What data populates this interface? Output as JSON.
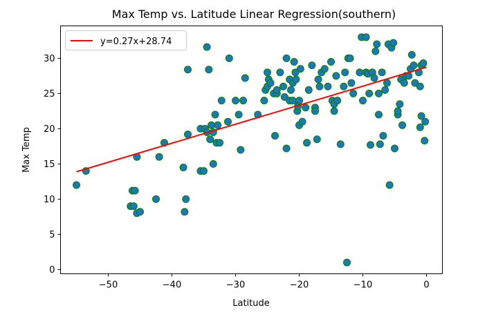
{
  "chart_data": {
    "type": "scatter",
    "title": "Max Temp vs. Latitude Linear Regression(southern)",
    "xlabel": "Latitude",
    "ylabel": "Max Temp",
    "xlim": [
      -57.5,
      2.5
    ],
    "ylim": [
      -0.6,
      34.6
    ],
    "xticks": [
      -50,
      -40,
      -30,
      -20,
      -10,
      0
    ],
    "yticks": [
      0,
      5,
      10,
      15,
      20,
      25,
      30
    ],
    "grid": false,
    "legend_position": "top-left",
    "regression": {
      "label": "y=0.27x+28.74",
      "slope": 0.27,
      "intercept": 28.74,
      "x_range": [
        -55,
        0
      ],
      "color": "#ff0000"
    },
    "marker_fill": "#1f77b4",
    "marker_edge": "#008000",
    "points": [
      [
        -55,
        12
      ],
      [
        -53.5,
        14
      ],
      [
        -46.5,
        9
      ],
      [
        -46.2,
        11.2
      ],
      [
        -46,
        9
      ],
      [
        -45.8,
        11.2
      ],
      [
        -45.5,
        8
      ],
      [
        -45.5,
        16
      ],
      [
        -45,
        8.2
      ],
      [
        -42.5,
        10
      ],
      [
        -42,
        16
      ],
      [
        -41.2,
        18
      ],
      [
        -38.2,
        14.5
      ],
      [
        -38,
        8.2
      ],
      [
        -37.8,
        10
      ],
      [
        -37.5,
        19.2
      ],
      [
        -37.5,
        28.4
      ],
      [
        -35.5,
        14
      ],
      [
        -35.5,
        20
      ],
      [
        -35,
        14
      ],
      [
        -34.8,
        20
      ],
      [
        -34.5,
        31.6
      ],
      [
        -34.5,
        19.5
      ],
      [
        -34.2,
        28.4
      ],
      [
        -34,
        18.5
      ],
      [
        -33.8,
        20.5
      ],
      [
        -33.5,
        15
      ],
      [
        -33.5,
        19.5
      ],
      [
        -33.2,
        22
      ],
      [
        -33,
        18
      ],
      [
        -32.8,
        20.5
      ],
      [
        -32.5,
        18
      ],
      [
        -32.2,
        24
      ],
      [
        -31.2,
        21
      ],
      [
        -31,
        30
      ],
      [
        -30,
        24
      ],
      [
        -29.5,
        22
      ],
      [
        -29.2,
        17
      ],
      [
        -28.8,
        24
      ],
      [
        -28.5,
        27.2
      ],
      [
        -26.5,
        22
      ],
      [
        -25.5,
        24
      ],
      [
        -25.3,
        25.5
      ],
      [
        -25,
        26
      ],
      [
        -25,
        28
      ],
      [
        -24.8,
        27
      ],
      [
        -24.5,
        26.5
      ],
      [
        -24,
        25
      ],
      [
        -23.8,
        19
      ],
      [
        -23.5,
        25
      ],
      [
        -23.5,
        25.5
      ],
      [
        -23,
        28
      ],
      [
        -22.5,
        26
      ],
      [
        -22.3,
        24.5
      ],
      [
        -22,
        17.2
      ],
      [
        -22,
        30
      ],
      [
        -21.5,
        27
      ],
      [
        -21.5,
        24
      ],
      [
        -21.3,
        25.5
      ],
      [
        -21,
        26.5
      ],
      [
        -21,
        24
      ],
      [
        -20.8,
        29.5
      ],
      [
        -20.6,
        28
      ],
      [
        -20.5,
        27
      ],
      [
        -20.3,
        22.5
      ],
      [
        -20.2,
        23.2
      ],
      [
        -20,
        20.5
      ],
      [
        -20,
        24
      ],
      [
        -19.8,
        28.5
      ],
      [
        -19.5,
        21
      ],
      [
        -19,
        23
      ],
      [
        -18.8,
        18
      ],
      [
        -18.5,
        25.5
      ],
      [
        -18,
        29
      ],
      [
        -17.5,
        23
      ],
      [
        -17.5,
        22.5
      ],
      [
        -17.2,
        18.5
      ],
      [
        -17,
        27
      ],
      [
        -16.8,
        26
      ],
      [
        -16.5,
        28
      ],
      [
        -16,
        28.5
      ],
      [
        -15.5,
        26
      ],
      [
        -15,
        29.5
      ],
      [
        -14.8,
        24
      ],
      [
        -14.5,
        23.5
      ],
      [
        -14.5,
        22.5
      ],
      [
        -14.2,
        27.5
      ],
      [
        -14,
        24
      ],
      [
        -13.5,
        17.8
      ],
      [
        -13,
        26
      ],
      [
        -12.8,
        28
      ],
      [
        -12.5,
        1
      ],
      [
        -12.3,
        30
      ],
      [
        -12,
        30
      ],
      [
        -11.8,
        26.5
      ],
      [
        -11.5,
        25
      ],
      [
        -10.5,
        28
      ],
      [
        -10.2,
        33
      ],
      [
        -10,
        24
      ],
      [
        -9.5,
        33
      ],
      [
        -9.5,
        28
      ],
      [
        -9.2,
        27.8
      ],
      [
        -9,
        25
      ],
      [
        -8.8,
        17.7
      ],
      [
        -8.5,
        28
      ],
      [
        -8.2,
        27.2
      ],
      [
        -8,
        31
      ],
      [
        -7.8,
        32
      ],
      [
        -7.5,
        25
      ],
      [
        -7.5,
        22
      ],
      [
        -7.3,
        17.8
      ],
      [
        -7,
        28
      ],
      [
        -6.8,
        19
      ],
      [
        -6.5,
        25.5
      ],
      [
        -6.2,
        26.5
      ],
      [
        -6,
        32
      ],
      [
        -5.8,
        12
      ],
      [
        -5.5,
        31.5
      ],
      [
        -5.2,
        32.2
      ],
      [
        -5,
        17.2
      ],
      [
        -4.5,
        22
      ],
      [
        -4.5,
        22.5
      ],
      [
        -4.2,
        23.5
      ],
      [
        -4,
        27
      ],
      [
        -3.8,
        20.5
      ],
      [
        -3.5,
        26.5
      ],
      [
        -3.2,
        27.5
      ],
      [
        -2.8,
        27.5
      ],
      [
        -2.5,
        28.5
      ],
      [
        -2.3,
        30.5
      ],
      [
        -2,
        29
      ],
      [
        -1.8,
        26.5
      ],
      [
        -1.2,
        28
      ],
      [
        -1,
        26
      ],
      [
        -1,
        20.2
      ],
      [
        -0.8,
        29
      ],
      [
        -0.8,
        21.8
      ],
      [
        -0.5,
        29.3
      ],
      [
        -0.3,
        18.3
      ],
      [
        -0.2,
        21
      ]
    ]
  }
}
